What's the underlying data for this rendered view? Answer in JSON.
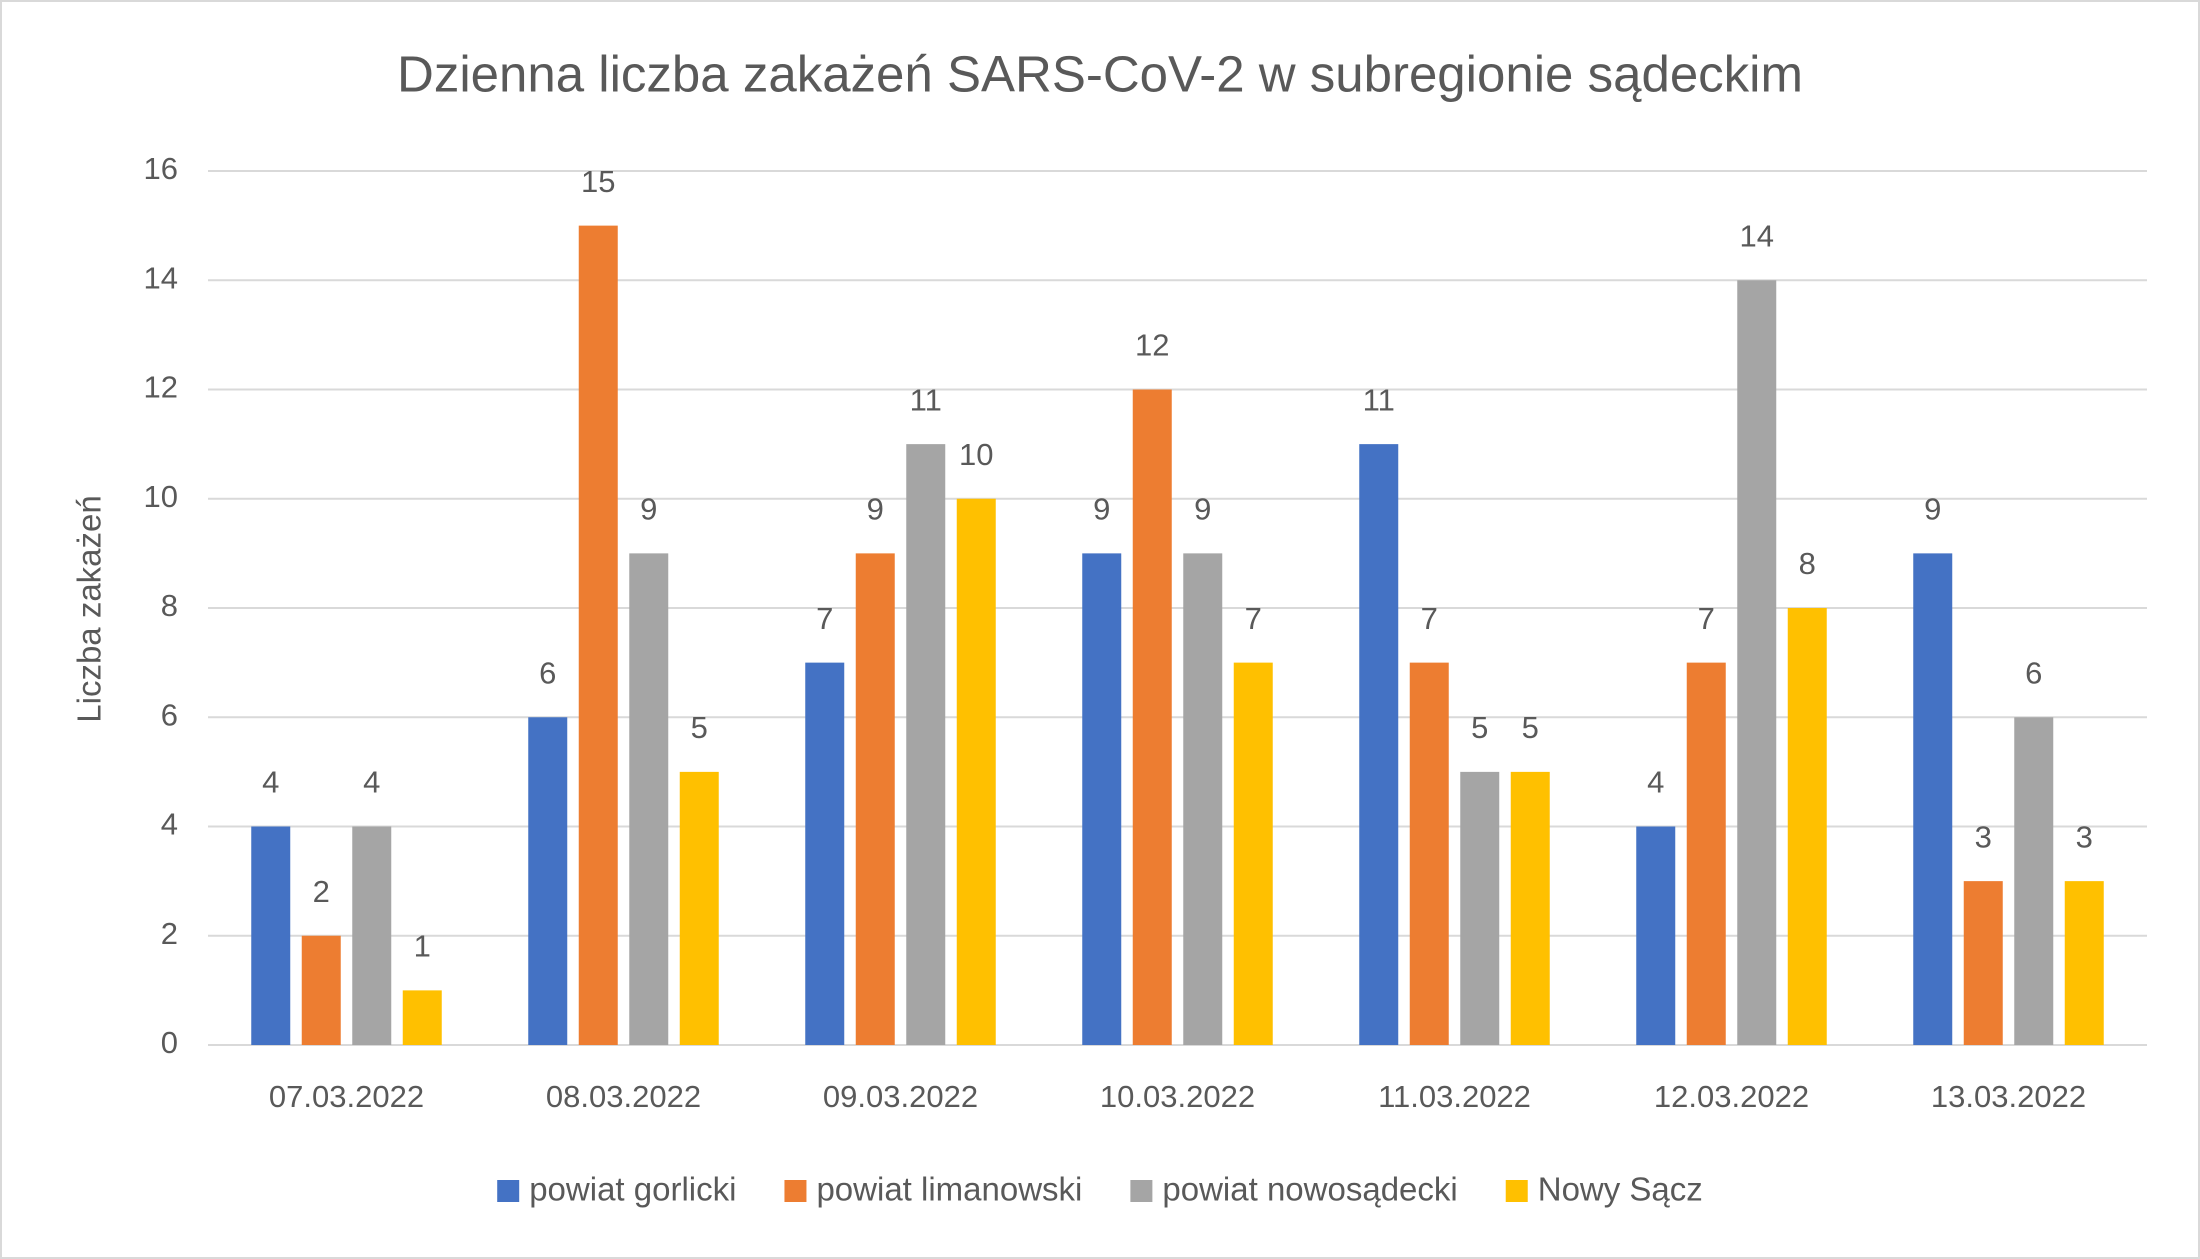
{
  "chart_data": {
    "type": "bar",
    "title": "Dzienna liczba zakażeń SARS-CoV-2 w subregionie sądeckim",
    "y_label": "Liczba zakażeń",
    "categories": [
      "07.03.2022",
      "08.03.2022",
      "09.03.2022",
      "10.03.2022",
      "11.03.2022",
      "12.03.2022",
      "13.03.2022"
    ],
    "series": [
      {
        "name": "powiat gorlicki",
        "color": "#4472c4",
        "values": [
          4,
          6,
          7,
          9,
          11,
          4,
          9
        ]
      },
      {
        "name": "powiat limanowski",
        "color": "#ed7d31",
        "values": [
          2,
          15,
          9,
          12,
          7,
          7,
          3
        ]
      },
      {
        "name": "powiat nowosądecki",
        "color": "#a5a5a5",
        "values": [
          4,
          9,
          11,
          9,
          5,
          14,
          6
        ]
      },
      {
        "name": "Nowy Sącz",
        "color": "#ffc000",
        "values": [
          1,
          5,
          10,
          7,
          5,
          8,
          3
        ]
      }
    ],
    "ylim": [
      0,
      16
    ],
    "yticks": [
      0,
      2,
      4,
      6,
      8,
      10,
      12,
      14,
      16
    ],
    "grid": true,
    "legend": "bottom"
  }
}
